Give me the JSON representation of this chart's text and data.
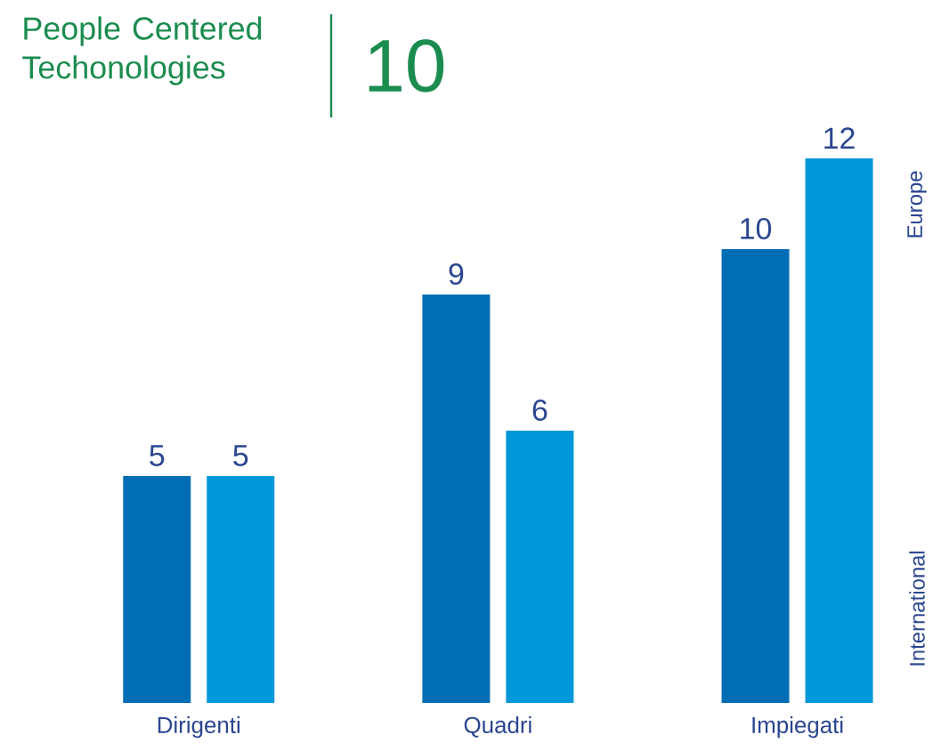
{
  "chart_data": {
    "type": "bar",
    "title": "People Centered Techonologies",
    "subtitle": "10",
    "categories": [
      "Dirigenti",
      "Quadri",
      "Impiegati"
    ],
    "series": [
      {
        "color": "#006db5",
        "values": [
          5,
          9,
          10
        ]
      },
      {
        "color": "#0098d8",
        "values": [
          5,
          6,
          12
        ]
      }
    ],
    "data_labels": true,
    "annotations": [
      "Europe",
      "International"
    ]
  }
}
